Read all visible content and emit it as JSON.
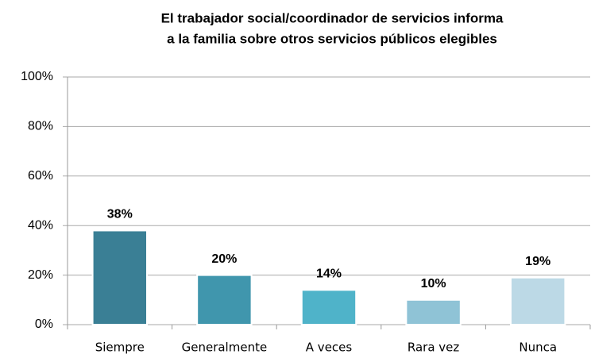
{
  "chart_data": {
    "type": "bar",
    "title": [
      "El trabajador social/coordinador de servicios informa",
      "a la familia sobre otros servicios públicos elegibles"
    ],
    "categories": [
      "Siempre",
      "Generalmente",
      "A veces",
      "Rara vez",
      "Nunca"
    ],
    "values": [
      38,
      20,
      14,
      10,
      19
    ],
    "value_labels": [
      "38%",
      "20%",
      "14%",
      "10%",
      "19%"
    ],
    "colors": [
      "#3a7f95",
      "#4096ad",
      "#4fb3c9",
      "#8fc3d6",
      "#bcd9e6"
    ],
    "ylim": [
      0,
      100
    ],
    "yticks": [
      {
        "value": 0,
        "label": "0%"
      },
      {
        "value": 20,
        "label": "20%"
      },
      {
        "value": 40,
        "label": "40%"
      },
      {
        "value": 60,
        "label": "60%"
      },
      {
        "value": 80,
        "label": "80%"
      },
      {
        "value": 100,
        "label": "100%"
      }
    ],
    "grid": true
  }
}
